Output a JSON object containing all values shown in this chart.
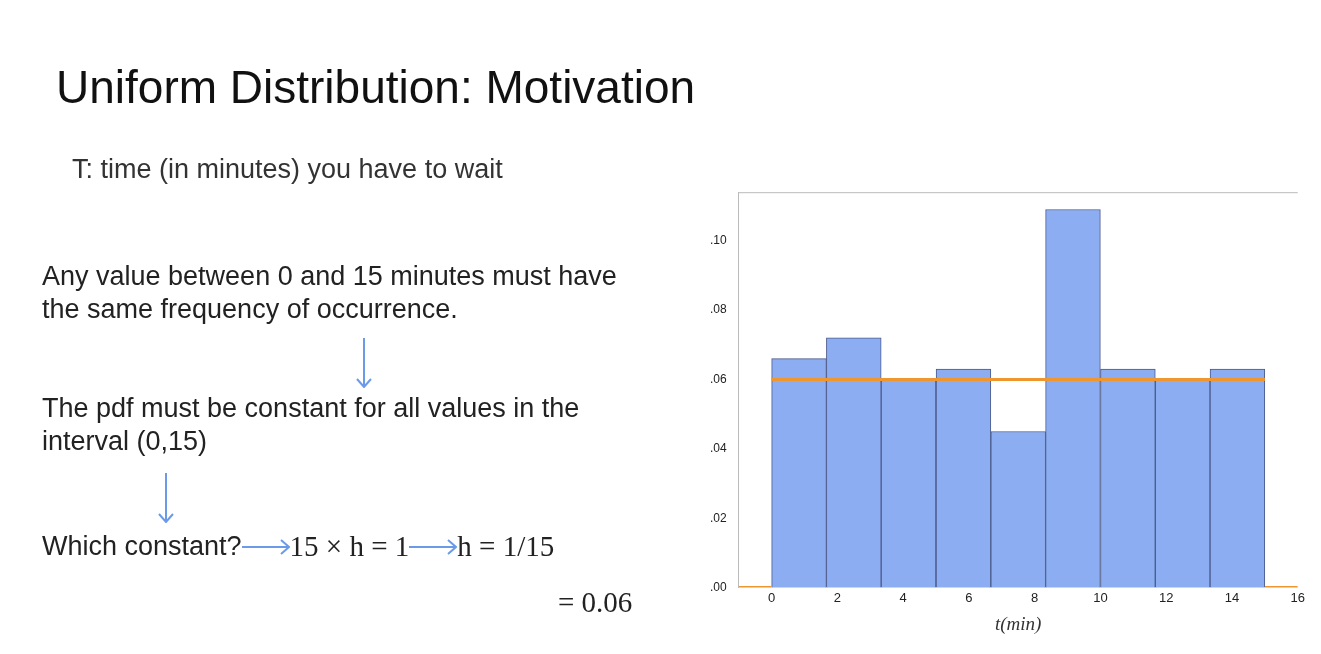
{
  "chart_data": {
    "type": "histogram",
    "title": "Uniform Distribution: Motivation",
    "subtitle": "T: time (in minutes) you have to wait",
    "xlabel": "t(min)",
    "annotations": [
      "Any value between 0 and 15 minutes must have the same frequency of occurrence.",
      "The pdf must be constant for all values in the interval (0,15)",
      "Which constant?",
      "15 × h = 1",
      "h = 1/15",
      "= 0.06"
    ],
    "bins": [
      0,
      1.67,
      3.33,
      5,
      6.67,
      8.33,
      10,
      11.67,
      13.33,
      15
    ],
    "values": [
      0.066,
      0.072,
      0.06,
      0.063,
      0.045,
      0.109,
      0.063,
      0.06,
      0.063
    ],
    "color": "#8cadf2",
    "series": [
      {
        "type": "line",
        "color": "#f0962e",
        "x": [
          -1,
          0
        ],
        "values": [
          0,
          0
        ]
      },
      {
        "type": "line",
        "color": "#f0962e",
        "x": [
          0,
          15
        ],
        "values": [
          0.06,
          0.06
        ]
      },
      {
        "type": "line",
        "color": "#f0962e",
        "x": [
          15,
          16
        ],
        "values": [
          0,
          0
        ]
      }
    ],
    "xlim": [
      -1,
      16
    ],
    "xticks": [
      0,
      2,
      4,
      6,
      8,
      10,
      12,
      14,
      16
    ],
    "ylim": [
      0,
      0.114
    ],
    "yticks": [
      {
        "value": 0,
        "label": ".00"
      },
      {
        "value": 0.02,
        "label": ".02"
      },
      {
        "value": 0.04,
        "label": ".04"
      },
      {
        "value": 0.06,
        "label": ".06"
      },
      {
        "value": 0.08,
        "label": ".08"
      },
      {
        "value": 0.1,
        "label": ".10"
      }
    ],
    "grid": false,
    "legend": false
  }
}
